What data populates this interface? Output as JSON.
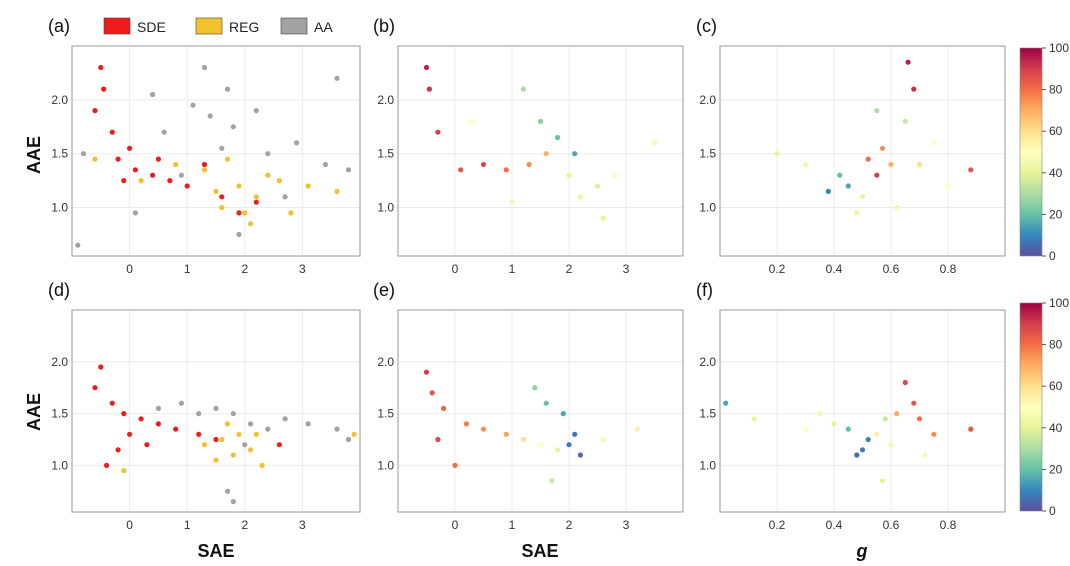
{
  "legend": {
    "items": [
      {
        "label": "SDE",
        "color": "#ee1c1c"
      },
      {
        "label": "REG",
        "color": "#f2c12e"
      },
      {
        "label": "AA",
        "color": "#a2a2a2"
      }
    ]
  },
  "colorbar": {
    "ticks": [
      "100",
      "80",
      "60",
      "40",
      "20",
      "0"
    ],
    "min": 0,
    "max": 100,
    "colormap": "Spectral_r"
  },
  "panels": [
    {
      "label": "(a)",
      "xlabel": "",
      "ylabel": "AAE",
      "xticks": [
        "0",
        "1",
        "2",
        "3"
      ],
      "yticks": [
        "2.0",
        "1.5",
        "1.0"
      ],
      "xlim": [
        -1.0,
        4.0
      ],
      "ylim": [
        0.55,
        2.5
      ],
      "coloring": "category"
    },
    {
      "label": "(b)",
      "xlabel": "",
      "ylabel": "",
      "xticks": [
        "0",
        "1",
        "2",
        "3"
      ],
      "yticks": [
        "2.0",
        "1.5",
        "1.0"
      ],
      "xlim": [
        -1.0,
        4.0
      ],
      "ylim": [
        0.55,
        2.5
      ],
      "coloring": "percent"
    },
    {
      "label": "(c)",
      "xlabel": "",
      "ylabel": "",
      "xticks": [
        "0.2",
        "0.4",
        "0.6",
        "0.8"
      ],
      "yticks": [
        "2.0",
        "1.5",
        "1.0"
      ],
      "xlim": [
        0.0,
        1.0
      ],
      "ylim": [
        0.55,
        2.5
      ],
      "coloring": "percent"
    },
    {
      "label": "(d)",
      "xlabel": "SAE",
      "ylabel": "AAE",
      "xticks": [
        "0",
        "1",
        "2",
        "3"
      ],
      "yticks": [
        "2.0",
        "1.5",
        "1.0"
      ],
      "xlim": [
        -1.0,
        4.0
      ],
      "ylim": [
        0.55,
        2.5
      ],
      "coloring": "category"
    },
    {
      "label": "(e)",
      "xlabel": "SAE",
      "ylabel": "",
      "xticks": [
        "0",
        "1",
        "2",
        "3"
      ],
      "yticks": [
        "2.0",
        "1.5",
        "1.0"
      ],
      "xlim": [
        -1.0,
        4.0
      ],
      "ylim": [
        0.55,
        2.5
      ],
      "coloring": "percent"
    },
    {
      "label": "(f)",
      "xlabel": "g",
      "ylabel": "",
      "xticks": [
        "0.2",
        "0.4",
        "0.6",
        "0.8"
      ],
      "yticks": [
        "2.0",
        "1.5",
        "1.0"
      ],
      "xlim": [
        0.0,
        1.0
      ],
      "ylim": [
        0.55,
        2.5
      ],
      "coloring": "percent"
    }
  ],
  "chart_data": [
    {
      "type": "scatter",
      "panel": "(a)",
      "xlabel": "",
      "ylabel": "AAE",
      "xlim": [
        -1.0,
        4.0
      ],
      "ylim": [
        0.55,
        2.5
      ],
      "series": [
        {
          "name": "AA",
          "color": "#a2a2a2",
          "points": [
            [
              1.4,
              1.85
            ],
            [
              1.1,
              1.95
            ],
            [
              1.7,
              2.1
            ],
            [
              0.6,
              1.7
            ],
            [
              2.4,
              1.5
            ],
            [
              2.9,
              1.6
            ],
            [
              3.4,
              1.4
            ],
            [
              -0.8,
              1.5
            ],
            [
              1.9,
              0.75
            ],
            [
              1.3,
              2.3
            ],
            [
              0.1,
              0.95
            ],
            [
              3.6,
              2.2
            ],
            [
              2.2,
              1.9
            ],
            [
              -0.9,
              0.65
            ],
            [
              1.6,
              1.55
            ],
            [
              0.9,
              1.3
            ],
            [
              2.7,
              1.1
            ],
            [
              3.8,
              1.35
            ],
            [
              0.4,
              2.05
            ],
            [
              1.8,
              1.75
            ]
          ]
        },
        {
          "name": "REG",
          "color": "#f2c12e",
          "points": [
            [
              1.9,
              1.2
            ],
            [
              2.2,
              1.1
            ],
            [
              2.4,
              1.3
            ],
            [
              1.6,
              1.0
            ],
            [
              2.0,
              0.95
            ],
            [
              1.3,
              1.35
            ],
            [
              0.8,
              1.4
            ],
            [
              2.6,
              1.25
            ],
            [
              3.1,
              1.2
            ],
            [
              2.1,
              0.85
            ],
            [
              1.5,
              1.15
            ],
            [
              0.2,
              1.25
            ],
            [
              3.6,
              1.15
            ],
            [
              -0.6,
              1.45
            ],
            [
              2.8,
              0.95
            ],
            [
              1.7,
              1.45
            ]
          ]
        },
        {
          "name": "SDE",
          "color": "#ee1c1c",
          "points": [
            [
              -0.5,
              2.3
            ],
            [
              -0.45,
              2.1
            ],
            [
              -0.6,
              1.9
            ],
            [
              -0.3,
              1.7
            ],
            [
              -0.2,
              1.45
            ],
            [
              0.1,
              1.35
            ],
            [
              0.4,
              1.3
            ],
            [
              0.7,
              1.25
            ],
            [
              1.0,
              1.2
            ],
            [
              1.3,
              1.4
            ],
            [
              1.6,
              1.1
            ],
            [
              1.9,
              0.95
            ],
            [
              0.0,
              1.55
            ],
            [
              -0.1,
              1.25
            ],
            [
              0.5,
              1.45
            ],
            [
              2.2,
              1.05
            ]
          ]
        }
      ]
    },
    {
      "type": "scatter",
      "panel": "(b)",
      "xlabel": "",
      "ylabel": "",
      "xlim": [
        -1.0,
        4.0
      ],
      "ylim": [
        0.55,
        2.5
      ],
      "value_name": "colorbar 0-100",
      "points": [
        [
          -0.5,
          2.3,
          95
        ],
        [
          -0.45,
          2.1,
          92
        ],
        [
          -0.3,
          1.7,
          90
        ],
        [
          0.1,
          1.35,
          85
        ],
        [
          0.5,
          1.4,
          88
        ],
        [
          0.9,
          1.35,
          80
        ],
        [
          1.3,
          1.4,
          75
        ],
        [
          1.6,
          1.5,
          70
        ],
        [
          2.0,
          1.3,
          40
        ],
        [
          2.2,
          1.1,
          42
        ],
        [
          2.5,
          1.2,
          38
        ],
        [
          1.8,
          1.65,
          20
        ],
        [
          1.5,
          1.8,
          25
        ],
        [
          2.1,
          1.5,
          15
        ],
        [
          1.0,
          1.05,
          45
        ],
        [
          2.8,
          1.3,
          48
        ],
        [
          0.3,
          1.8,
          50
        ],
        [
          3.5,
          1.6,
          45
        ],
        [
          1.2,
          2.1,
          30
        ],
        [
          2.6,
          0.9,
          40
        ]
      ]
    },
    {
      "type": "scatter",
      "panel": "(c)",
      "xlabel": "",
      "ylabel": "",
      "xlim": [
        0.0,
        1.0
      ],
      "ylim": [
        0.55,
        2.5
      ],
      "value_name": "colorbar 0-100",
      "points": [
        [
          0.66,
          2.35,
          95
        ],
        [
          0.68,
          2.1,
          92
        ],
        [
          0.55,
          1.3,
          90
        ],
        [
          0.52,
          1.45,
          80
        ],
        [
          0.57,
          1.55,
          75
        ],
        [
          0.6,
          1.4,
          70
        ],
        [
          0.45,
          1.2,
          15
        ],
        [
          0.42,
          1.3,
          20
        ],
        [
          0.5,
          1.1,
          40
        ],
        [
          0.48,
          0.95,
          42
        ],
        [
          0.62,
          1.0,
          45
        ],
        [
          0.38,
          1.15,
          10
        ],
        [
          0.7,
          1.4,
          60
        ],
        [
          0.75,
          1.6,
          50
        ],
        [
          0.3,
          1.4,
          45
        ],
        [
          0.8,
          1.2,
          50
        ],
        [
          0.55,
          1.9,
          30
        ],
        [
          0.88,
          1.35,
          85
        ],
        [
          0.2,
          1.5,
          40
        ],
        [
          0.65,
          1.8,
          35
        ]
      ]
    },
    {
      "type": "scatter",
      "panel": "(d)",
      "xlabel": "SAE",
      "ylabel": "AAE",
      "xlim": [
        -1.0,
        4.0
      ],
      "ylim": [
        0.55,
        2.5
      ],
      "series": [
        {
          "name": "AA",
          "color": "#a2a2a2",
          "points": [
            [
              1.8,
              1.5
            ],
            [
              2.1,
              1.4
            ],
            [
              2.4,
              1.35
            ],
            [
              1.5,
              1.55
            ],
            [
              1.2,
              1.5
            ],
            [
              0.9,
              1.6
            ],
            [
              2.7,
              1.45
            ],
            [
              3.1,
              1.4
            ],
            [
              3.6,
              1.35
            ],
            [
              1.7,
              0.75
            ],
            [
              1.8,
              0.65
            ],
            [
              0.5,
              1.55
            ],
            [
              2.0,
              1.2
            ],
            [
              3.8,
              1.25
            ]
          ]
        },
        {
          "name": "REG",
          "color": "#f2c12e",
          "points": [
            [
              1.6,
              1.25
            ],
            [
              1.8,
              1.1
            ],
            [
              1.9,
              1.3
            ],
            [
              2.1,
              1.15
            ],
            [
              1.5,
              1.05
            ],
            [
              1.7,
              1.4
            ],
            [
              1.3,
              1.2
            ],
            [
              2.2,
              1.3
            ],
            [
              2.3,
              1.0
            ],
            [
              3.9,
              1.3
            ],
            [
              -0.1,
              0.95
            ]
          ]
        },
        {
          "name": "SDE",
          "color": "#ee1c1c",
          "points": [
            [
              -0.5,
              1.95
            ],
            [
              -0.6,
              1.75
            ],
            [
              -0.3,
              1.6
            ],
            [
              -0.1,
              1.5
            ],
            [
              0.2,
              1.45
            ],
            [
              0.5,
              1.4
            ],
            [
              0.8,
              1.35
            ],
            [
              1.2,
              1.3
            ],
            [
              1.5,
              1.25
            ],
            [
              0.0,
              1.3
            ],
            [
              -0.2,
              1.15
            ],
            [
              0.3,
              1.2
            ],
            [
              -0.4,
              1.0
            ],
            [
              2.6,
              1.2
            ]
          ]
        }
      ]
    },
    {
      "type": "scatter",
      "panel": "(e)",
      "xlabel": "SAE",
      "ylabel": "",
      "xlim": [
        -1.0,
        4.0
      ],
      "ylim": [
        0.55,
        2.5
      ],
      "value_name": "colorbar 0-100",
      "points": [
        [
          -0.5,
          1.9,
          90
        ],
        [
          -0.4,
          1.7,
          85
        ],
        [
          -0.2,
          1.55,
          82
        ],
        [
          0.2,
          1.4,
          78
        ],
        [
          0.5,
          1.35,
          75
        ],
        [
          0.9,
          1.3,
          72
        ],
        [
          1.2,
          1.25,
          60
        ],
        [
          1.5,
          1.2,
          50
        ],
        [
          1.8,
          1.15,
          40
        ],
        [
          2.0,
          1.2,
          8
        ],
        [
          2.2,
          1.1,
          5
        ],
        [
          2.1,
          1.3,
          6
        ],
        [
          1.9,
          1.5,
          15
        ],
        [
          1.6,
          1.6,
          20
        ],
        [
          1.4,
          1.75,
          25
        ],
        [
          1.7,
          0.85,
          35
        ],
        [
          2.6,
          1.25,
          45
        ],
        [
          3.2,
          1.35,
          55
        ],
        [
          0.0,
          1.0,
          80
        ],
        [
          -0.3,
          1.25,
          88
        ]
      ]
    },
    {
      "type": "scatter",
      "panel": "(f)",
      "xlabel": "g",
      "ylabel": "",
      "xlim": [
        0.0,
        1.0
      ],
      "ylim": [
        0.55,
        2.5
      ],
      "value_name": "colorbar 0-100",
      "points": [
        [
          0.65,
          1.8,
          88
        ],
        [
          0.68,
          1.6,
          85
        ],
        [
          0.7,
          1.45,
          80
        ],
        [
          0.62,
          1.5,
          70
        ],
        [
          0.55,
          1.3,
          55
        ],
        [
          0.5,
          1.15,
          8
        ],
        [
          0.48,
          1.1,
          5
        ],
        [
          0.52,
          1.25,
          10
        ],
        [
          0.45,
          1.35,
          20
        ],
        [
          0.58,
          1.45,
          35
        ],
        [
          0.6,
          1.2,
          45
        ],
        [
          0.4,
          1.4,
          40
        ],
        [
          0.35,
          1.5,
          45
        ],
        [
          0.3,
          1.35,
          50
        ],
        [
          0.75,
          1.3,
          75
        ],
        [
          0.88,
          1.35,
          85
        ],
        [
          0.02,
          1.6,
          15
        ],
        [
          0.12,
          1.45,
          40
        ],
        [
          0.57,
          0.85,
          40
        ],
        [
          0.72,
          1.1,
          45
        ]
      ]
    }
  ]
}
